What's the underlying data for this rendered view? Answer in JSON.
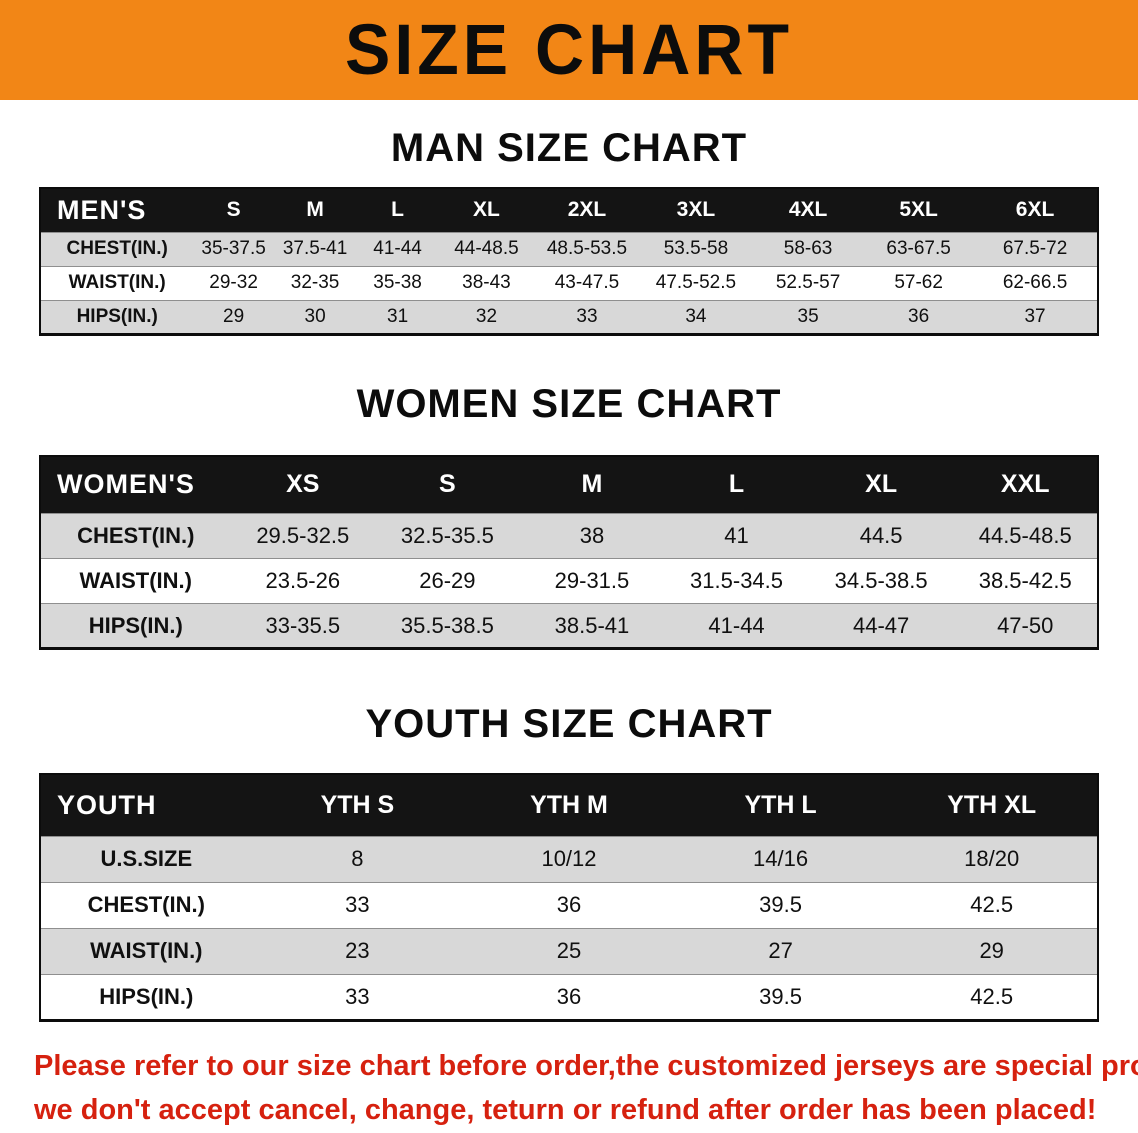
{
  "banner": {
    "title": "SIZE CHART"
  },
  "colors": {
    "banner_bg": "#f28616",
    "header_bg": "#141414",
    "row_alt_bg": "#d8d8d8",
    "disclaimer_red": "#d6210f"
  },
  "sections": [
    {
      "heading": "MAN SIZE CHART",
      "table": {
        "header": [
          "MEN'S",
          "S",
          "M",
          "L",
          "XL",
          "2XL",
          "3XL",
          "4XL",
          "5XL",
          "6XL"
        ],
        "rows": [
          [
            "CHEST(IN.)",
            "35-37.5",
            "37.5-41",
            "41-44",
            "44-48.5",
            "48.5-53.5",
            "53.5-58",
            "58-63",
            "63-67.5",
            "67.5-72"
          ],
          [
            "WAIST(IN.)",
            "29-32",
            "32-35",
            "35-38",
            "38-43",
            "43-47.5",
            "47.5-52.5",
            "52.5-57",
            "57-62",
            "62-66.5"
          ],
          [
            "HIPS(IN.)",
            "29",
            "30",
            "31",
            "32",
            "33",
            "34",
            "35",
            "36",
            "37"
          ]
        ]
      }
    },
    {
      "heading": "WOMEN SIZE CHART",
      "table": {
        "header": [
          "WOMEN'S",
          "XS",
          "S",
          "M",
          "L",
          "XL",
          "XXL"
        ],
        "rows": [
          [
            "CHEST(IN.)",
            "29.5-32.5",
            "32.5-35.5",
            "38",
            "41",
            "44.5",
            "44.5-48.5"
          ],
          [
            "WAIST(IN.)",
            "23.5-26",
            "26-29",
            "29-31.5",
            "31.5-34.5",
            "34.5-38.5",
            "38.5-42.5"
          ],
          [
            "HIPS(IN.)",
            "33-35.5",
            "35.5-38.5",
            "38.5-41",
            "41-44",
            "44-47",
            "47-50"
          ]
        ]
      }
    },
    {
      "heading": "YOUTH SIZE CHART",
      "table": {
        "header": [
          "YOUTH",
          "YTH S",
          "YTH M",
          "YTH L",
          "YTH XL"
        ],
        "rows": [
          [
            "U.S.SIZE",
            "8",
            "10/12",
            "14/16",
            "18/20"
          ],
          [
            "CHEST(IN.)",
            "33",
            "36",
            "39.5",
            "42.5"
          ],
          [
            "WAIST(IN.)",
            "23",
            "25",
            "27",
            "29"
          ],
          [
            "HIPS(IN.)",
            "33",
            "36",
            "39.5",
            "42.5"
          ]
        ]
      }
    }
  ],
  "disclaimer": {
    "line1": "Please refer to our size chart before order,the customized jerseys are special products,",
    "line2": "we don't accept cancel, change, teturn or refund after order has been placed!"
  }
}
